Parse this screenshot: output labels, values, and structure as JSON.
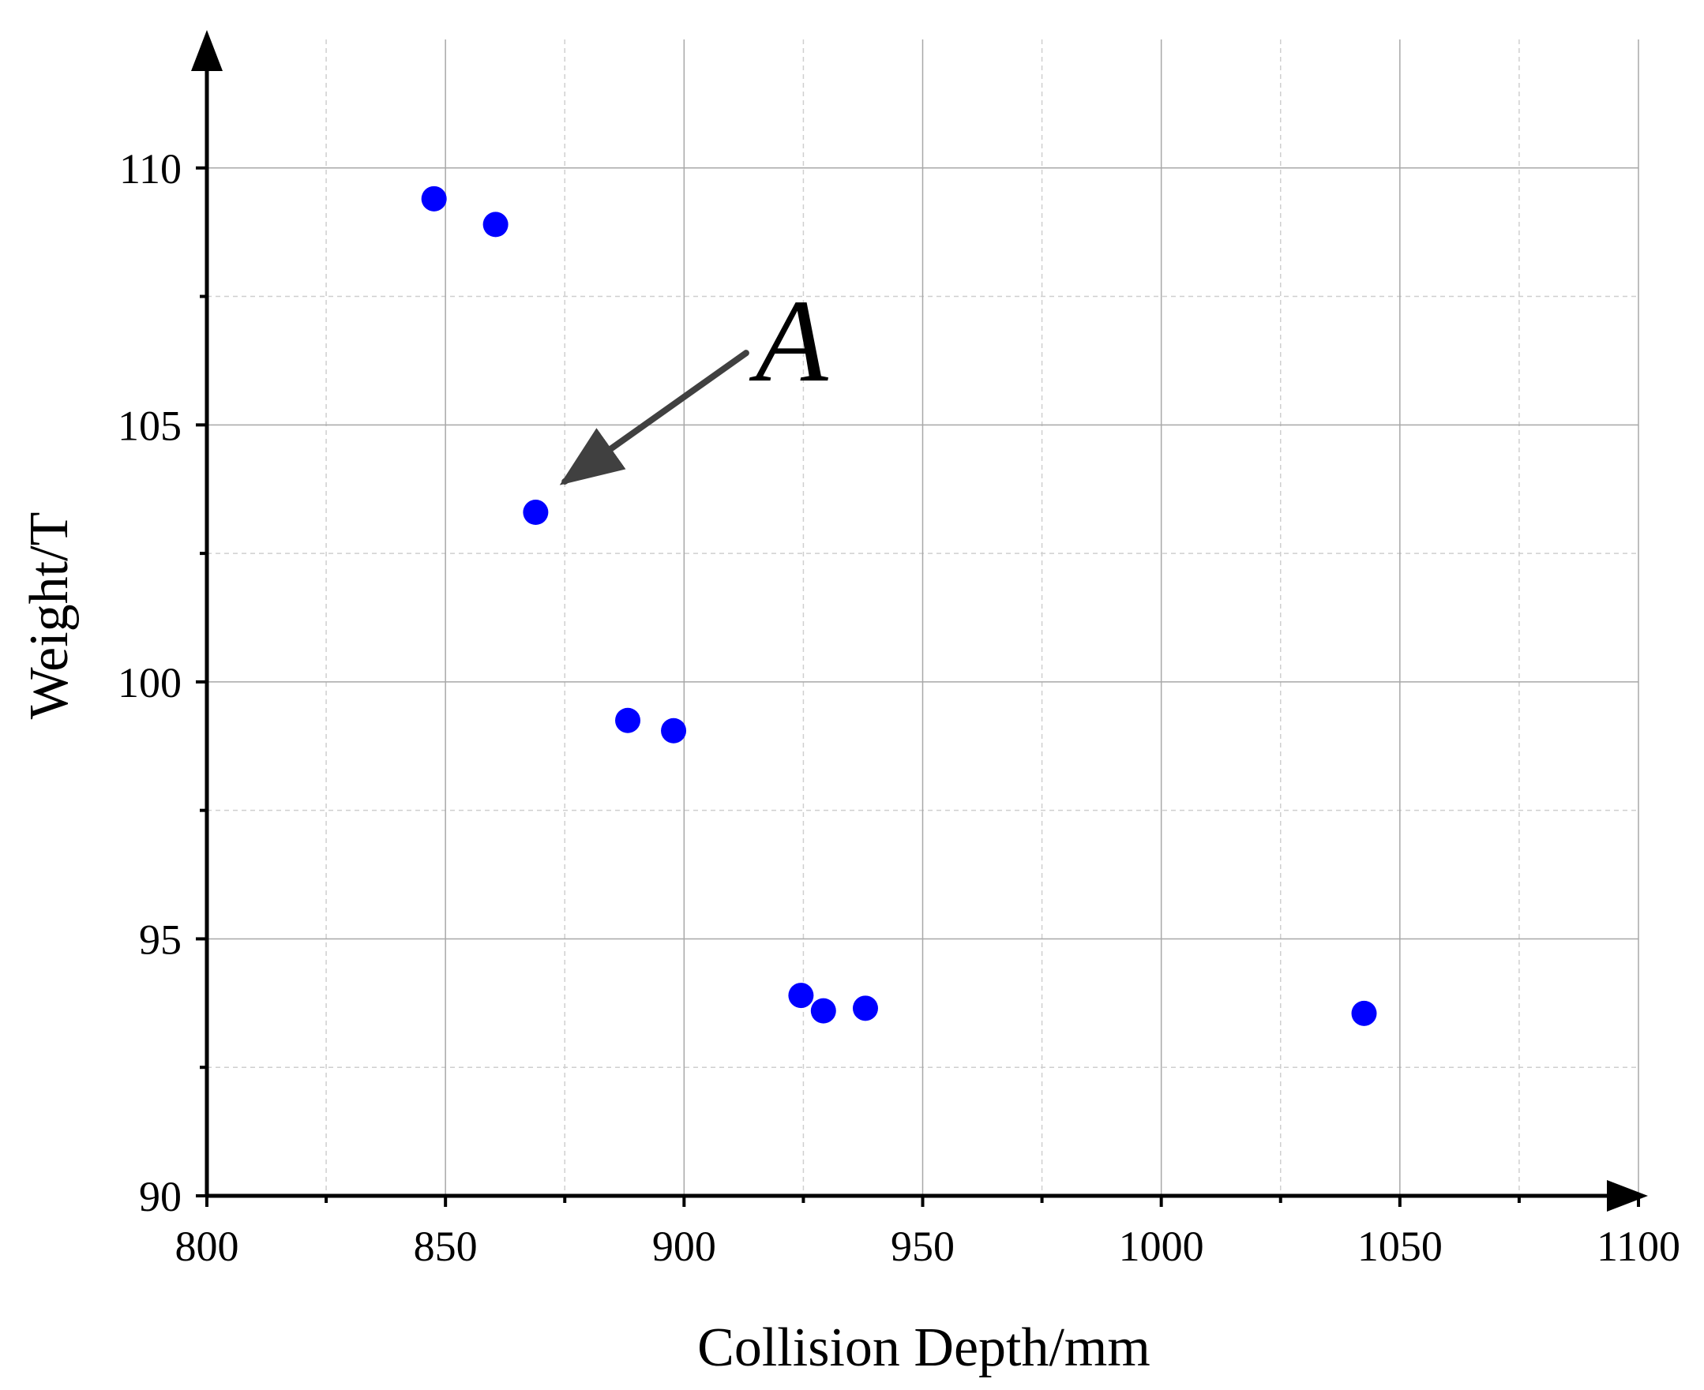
{
  "chart_data": {
    "type": "scatter",
    "title": "",
    "xlabel": "Collision Depth/mm",
    "ylabel": "Weight/T",
    "xlim": [
      800,
      1100
    ],
    "ylim": [
      90,
      112.5
    ],
    "x_ticks": [
      800,
      850,
      900,
      950,
      1000,
      1050,
      1100
    ],
    "y_ticks": [
      90,
      95,
      100,
      105,
      110
    ],
    "x_minor_step": 25,
    "y_minor_step": 2.5,
    "grid": true,
    "marker_color": "#0000ff",
    "series": [
      {
        "points": [
          [
            847.6,
            109.4
          ],
          [
            860.5,
            108.9
          ],
          [
            868.9,
            103.3
          ],
          [
            888.2,
            99.25
          ],
          [
            897.8,
            99.05
          ],
          [
            924.5,
            93.9
          ],
          [
            929.2,
            93.6
          ],
          [
            938.0,
            93.65
          ],
          [
            1042.5,
            93.55
          ]
        ]
      }
    ],
    "annotations": [
      {
        "text": "A",
        "points_to": [
          875,
          103.9
        ],
        "text_at": [
          913,
          106.4
        ]
      }
    ]
  }
}
